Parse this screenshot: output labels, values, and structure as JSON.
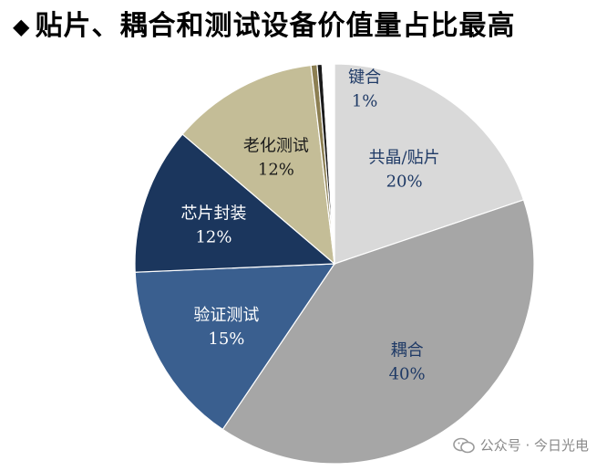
{
  "title": "贴片、耦合和测试设备价值量占比最高",
  "watermark": "公众号 · 今日光电",
  "chart_data": {
    "type": "pie",
    "slices": [
      {
        "label": "共晶/贴片",
        "value": 20,
        "pct_label": "20%",
        "color": "#d9d9d9"
      },
      {
        "label": "耦合",
        "value": 40,
        "pct_label": "40%",
        "color": "#a6a6a6"
      },
      {
        "label": "验证测试",
        "value": 15,
        "pct_label": "15%",
        "color": "#3a5f8f"
      },
      {
        "label": "芯片封装",
        "value": 12,
        "pct_label": "12%",
        "color": "#1b365d"
      },
      {
        "label": "老化测试",
        "value": 12,
        "pct_label": "12%",
        "color": "#c4bd97"
      },
      {
        "label": "",
        "value": 0.5,
        "pct_label": "",
        "color": "#8c7f52"
      },
      {
        "label": "",
        "value": 0.4,
        "pct_label": "",
        "color": "#1a1a1a"
      },
      {
        "label": "键合",
        "value": 1,
        "pct_label": "1%",
        "color": "#ffffff"
      }
    ]
  }
}
